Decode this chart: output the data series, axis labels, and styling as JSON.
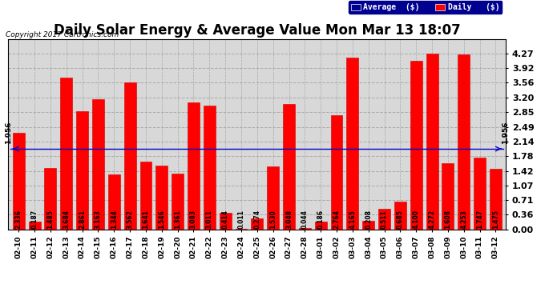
{
  "title": "Daily Solar Energy & Average Value Mon Mar 13 18:07",
  "copyright": "Copyright 2017 Cartronics.com",
  "categories": [
    "02-10",
    "02-11",
    "02-12",
    "02-13",
    "02-14",
    "02-15",
    "02-16",
    "02-17",
    "02-18",
    "02-19",
    "02-20",
    "02-21",
    "02-22",
    "02-23",
    "02-24",
    "02-25",
    "02-26",
    "02-27",
    "02-28",
    "03-01",
    "03-02",
    "03-03",
    "03-04",
    "03-05",
    "03-06",
    "03-07",
    "03-08",
    "03-09",
    "03-10",
    "03-11",
    "03-12"
  ],
  "values": [
    2.336,
    0.187,
    1.485,
    3.684,
    2.861,
    3.163,
    1.344,
    3.562,
    1.641,
    1.546,
    1.361,
    3.083,
    3.011,
    0.414,
    0.011,
    0.274,
    1.53,
    3.048,
    0.044,
    0.186,
    2.764,
    4.165,
    0.208,
    0.511,
    0.685,
    4.1,
    4.272,
    1.608,
    4.253,
    1.747,
    1.475
  ],
  "average_line": 1.956,
  "ylim": [
    0,
    4.62
  ],
  "yticks": [
    0.0,
    0.36,
    0.71,
    1.07,
    1.42,
    1.78,
    2.14,
    2.49,
    2.85,
    3.2,
    3.56,
    3.92,
    4.27
  ],
  "bar_color": "#ff0000",
  "bar_edge_color": "#cc0000",
  "avg_line_color": "#0000cc",
  "background_color": "#ffffff",
  "plot_bg_color": "#d8d8d8",
  "grid_color": "#aaaaaa",
  "title_fontsize": 12,
  "label_fontsize": 7,
  "tick_fontsize": 8,
  "value_fontsize": 5.5,
  "legend_avg_label": "Average  ($)",
  "legend_daily_label": "Daily   ($)"
}
